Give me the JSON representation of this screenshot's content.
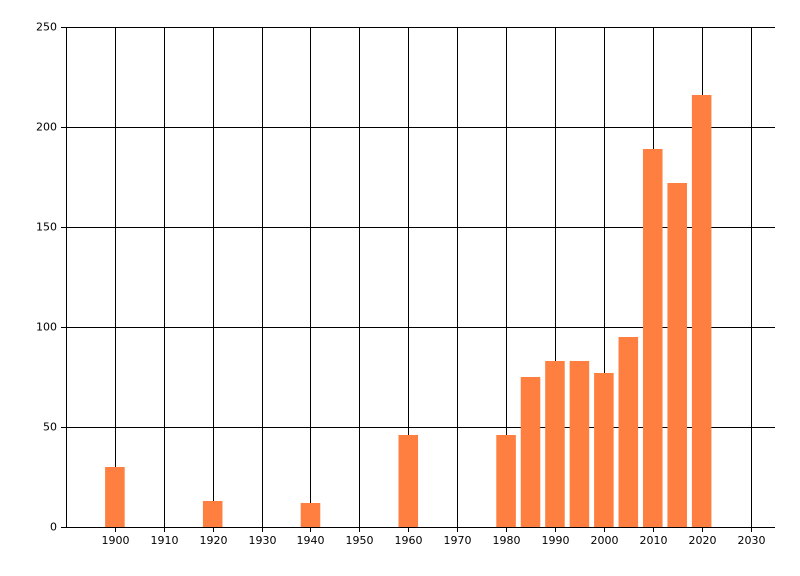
{
  "chart_data": {
    "type": "bar",
    "color": "#ff7f40",
    "x": [
      1900,
      1920,
      1940,
      1960,
      1980,
      1985,
      1990,
      1995,
      2000,
      2005,
      2010,
      2015,
      2020
    ],
    "values": [
      30,
      13,
      12,
      46,
      46,
      75,
      83,
      83,
      77,
      95,
      189,
      172,
      216
    ],
    "xlim": [
      1890,
      2035
    ],
    "xticks": [
      1900,
      1910,
      1920,
      1930,
      1940,
      1950,
      1960,
      1970,
      1980,
      1990,
      2000,
      2010,
      2020,
      2030
    ],
    "ylim": [
      0,
      250
    ],
    "yticks": [
      0,
      50,
      100,
      150,
      200,
      250
    ],
    "grid": true
  }
}
